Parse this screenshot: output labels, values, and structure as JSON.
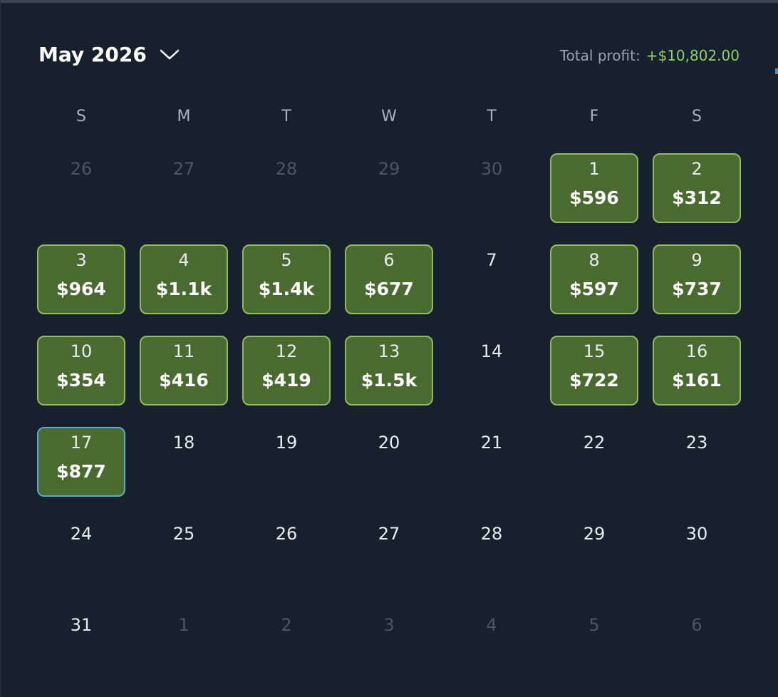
{
  "header": {
    "title": "May 2026",
    "total_label": "Total profit:",
    "total_value": "+$10,802.00"
  },
  "weekdays": [
    "S",
    "M",
    "T",
    "W",
    "T",
    "F",
    "S"
  ],
  "weeks": [
    [
      {
        "day": "26",
        "muted": true
      },
      {
        "day": "27",
        "muted": true
      },
      {
        "day": "28",
        "muted": true
      },
      {
        "day": "29",
        "muted": true
      },
      {
        "day": "30",
        "muted": true
      },
      {
        "day": "1",
        "profit": "$596"
      },
      {
        "day": "2",
        "profit": "$312"
      }
    ],
    [
      {
        "day": "3",
        "profit": "$964"
      },
      {
        "day": "4",
        "profit": "$1.1k"
      },
      {
        "day": "5",
        "profit": "$1.4k"
      },
      {
        "day": "6",
        "profit": "$677"
      },
      {
        "day": "7"
      },
      {
        "day": "8",
        "profit": "$597"
      },
      {
        "day": "9",
        "profit": "$737"
      }
    ],
    [
      {
        "day": "10",
        "profit": "$354"
      },
      {
        "day": "11",
        "profit": "$416"
      },
      {
        "day": "12",
        "profit": "$419"
      },
      {
        "day": "13",
        "profit": "$1.5k"
      },
      {
        "day": "14"
      },
      {
        "day": "15",
        "profit": "$722"
      },
      {
        "day": "16",
        "profit": "$161"
      }
    ],
    [
      {
        "day": "17",
        "profit": "$877",
        "today": true
      },
      {
        "day": "18"
      },
      {
        "day": "19"
      },
      {
        "day": "20"
      },
      {
        "day": "21"
      },
      {
        "day": "22"
      },
      {
        "day": "23"
      }
    ],
    [
      {
        "day": "24"
      },
      {
        "day": "25"
      },
      {
        "day": "26"
      },
      {
        "day": "27"
      },
      {
        "day": "28"
      },
      {
        "day": "29"
      },
      {
        "day": "30"
      }
    ],
    [
      {
        "day": "31"
      },
      {
        "day": "1",
        "muted": true
      },
      {
        "day": "2",
        "muted": true
      },
      {
        "day": "3",
        "muted": true
      },
      {
        "day": "4",
        "muted": true
      },
      {
        "day": "5",
        "muted": true
      },
      {
        "day": "6",
        "muted": true
      }
    ]
  ]
}
